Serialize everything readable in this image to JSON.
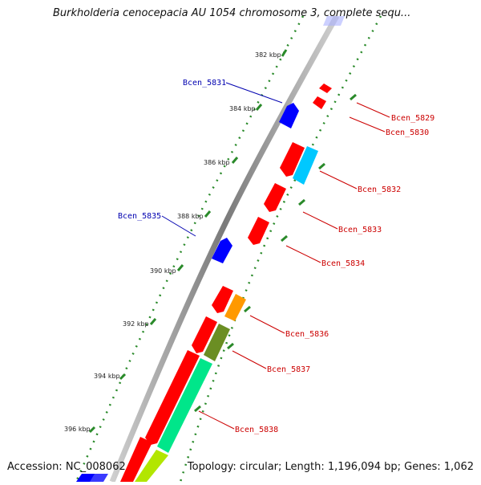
{
  "title": "Burkholderia cenocepacia AU 1054 chromosome 3, complete sequ...",
  "footer": {
    "accession": "Accession: NC_008062",
    "summary": "Topology: circular; Length: 1,196,094 bp; Genes: 1,062"
  },
  "scale": {
    "ticks": [
      "382 kbp",
      "384 kbp",
      "386 kbp",
      "388 kbp",
      "390 kbp",
      "392 kbp",
      "394 kbp",
      "396 kbp"
    ]
  },
  "colors": {
    "forward_cds": "#0000ff",
    "reverse_cds": "#ff0000",
    "cyan_feature": "#00c8ff",
    "orange_feature": "#ff9900",
    "olive_feature": "#6b8e23",
    "green_feature": "#00e68a",
    "yellow_green_feature": "#b2e600",
    "backbone": "#888888",
    "tick_green": "#2a8a2a",
    "label_blue": "#0000b0",
    "label_red": "#cc0000"
  },
  "genes": [
    {
      "name": "Bcen_5829",
      "strand": "reverse"
    },
    {
      "name": "Bcen_5830",
      "strand": "reverse"
    },
    {
      "name": "Bcen_5831",
      "strand": "forward"
    },
    {
      "name": "Bcen_5832",
      "strand": "reverse"
    },
    {
      "name": "Bcen_5833",
      "strand": "reverse"
    },
    {
      "name": "Bcen_5834",
      "strand": "reverse"
    },
    {
      "name": "Bcen_5835",
      "strand": "forward"
    },
    {
      "name": "Bcen_5836",
      "strand": "reverse"
    },
    {
      "name": "Bcen_5837",
      "strand": "reverse"
    },
    {
      "name": "Bcen_5838",
      "strand": "reverse"
    }
  ]
}
